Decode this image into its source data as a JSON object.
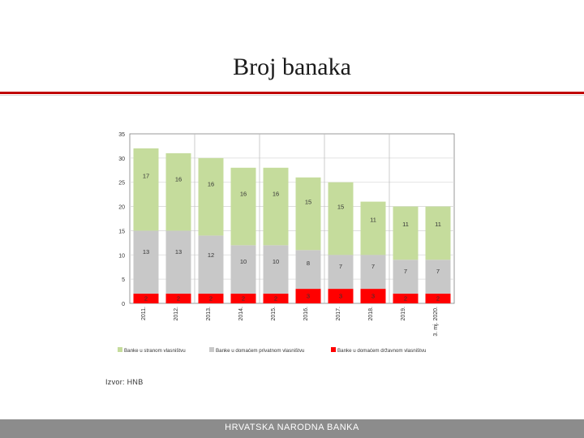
{
  "slide": {
    "title": "Broj banaka",
    "source": "Izvor: HNB",
    "footer": "HRVATSKA NARODNA BANKA"
  },
  "colors": {
    "foreign": "#c5dc9c",
    "domestic_private": "#c8c8c8",
    "domestic_state": "#ff0000",
    "accent": "#c00000",
    "footer": "#8c8c8c"
  },
  "chart_data": {
    "type": "bar",
    "stacked": true,
    "title": "",
    "xlabel": "",
    "ylabel": "",
    "ylim": [
      0,
      35
    ],
    "yticks": [
      0,
      5,
      10,
      15,
      20,
      25,
      30,
      35
    ],
    "grid": true,
    "legend_position": "bottom",
    "categories": [
      "2011.",
      "2012.",
      "2013.",
      "2014.",
      "2015.",
      "2016.",
      "2017.",
      "2018.",
      "2019.",
      "3. mj. 2020."
    ],
    "series": [
      {
        "name": "Banke u domaćem državnom vlasništvu",
        "values": [
          2,
          2,
          2,
          2,
          2,
          3,
          3,
          3,
          2,
          2
        ]
      },
      {
        "name": "Banke u domaćem privatnom vlasništvu",
        "values": [
          13,
          13,
          12,
          10,
          10,
          8,
          7,
          7,
          7,
          7
        ]
      },
      {
        "name": "Banke u stranom vlasništvu",
        "values": [
          17,
          16,
          16,
          16,
          16,
          15,
          15,
          11,
          11,
          11
        ]
      }
    ],
    "legend": [
      "Banke u stranom vlasništvu",
      "Banke u domaćem privatnom vlasništvu",
      "Banke u domaćem državnom vlasništvu"
    ]
  }
}
